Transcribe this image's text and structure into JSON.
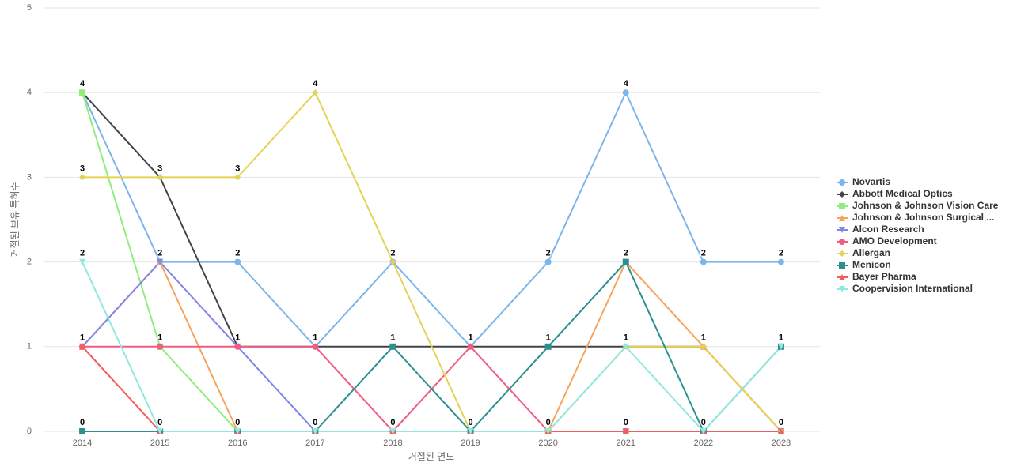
{
  "chart_data": {
    "type": "line",
    "x_label": "거절된 연도",
    "y_label": "거절된 보유 특허수",
    "categories": [
      "2014",
      "2015",
      "2016",
      "2017",
      "2018",
      "2019",
      "2020",
      "2021",
      "2022",
      "2023"
    ],
    "ylim": [
      0,
      5
    ],
    "yticks": [
      0,
      1,
      2,
      3,
      4,
      5
    ],
    "grid": true,
    "legend": "right",
    "series": [
      {
        "name": "Novartis",
        "color": "#7cb5ec",
        "marker": "circle",
        "values": [
          4,
          2,
          2,
          1,
          2,
          1,
          2,
          4,
          2,
          2
        ]
      },
      {
        "name": "Abbott Medical Optics",
        "color": "#434348",
        "marker": "diamond",
        "values": [
          4,
          3,
          1,
          1,
          1,
          1,
          1,
          1,
          1,
          0
        ]
      },
      {
        "name": "Johnson & Johnson Vision Care",
        "color": "#90ed7d",
        "marker": "square",
        "values": [
          4,
          1,
          0,
          0,
          0,
          0,
          0,
          0,
          0,
          0
        ]
      },
      {
        "name": "Johnson & Johnson Surgical ...",
        "color": "#f7a35c",
        "marker": "triangle",
        "values": [
          1,
          2,
          0,
          0,
          0,
          0,
          0,
          2,
          1,
          0
        ]
      },
      {
        "name": "Alcon Research",
        "color": "#8085e9",
        "marker": "triangle-down",
        "values": [
          1,
          2,
          1,
          0,
          0,
          0,
          0,
          0,
          0,
          0
        ]
      },
      {
        "name": "AMO Development",
        "color": "#f15c80",
        "marker": "circle",
        "values": [
          1,
          1,
          1,
          1,
          0,
          1,
          0,
          0,
          0,
          0
        ]
      },
      {
        "name": "Allergan",
        "color": "#e4d354",
        "marker": "diamond",
        "values": [
          3,
          3,
          3,
          4,
          2,
          0,
          0,
          1,
          1,
          0
        ]
      },
      {
        "name": "Menicon",
        "color": "#2b908f",
        "marker": "square",
        "values": [
          0,
          0,
          0,
          0,
          1,
          0,
          1,
          2,
          0,
          1
        ]
      },
      {
        "name": "Bayer Pharma",
        "color": "#f45b5b",
        "marker": "triangle",
        "values": [
          1,
          0,
          0,
          0,
          0,
          0,
          0,
          0,
          0,
          0
        ]
      },
      {
        "name": "Coopervision International",
        "color": "#91e8e1",
        "marker": "triangle-down",
        "values": [
          2,
          0,
          0,
          0,
          0,
          0,
          0,
          1,
          0,
          1
        ]
      }
    ]
  }
}
